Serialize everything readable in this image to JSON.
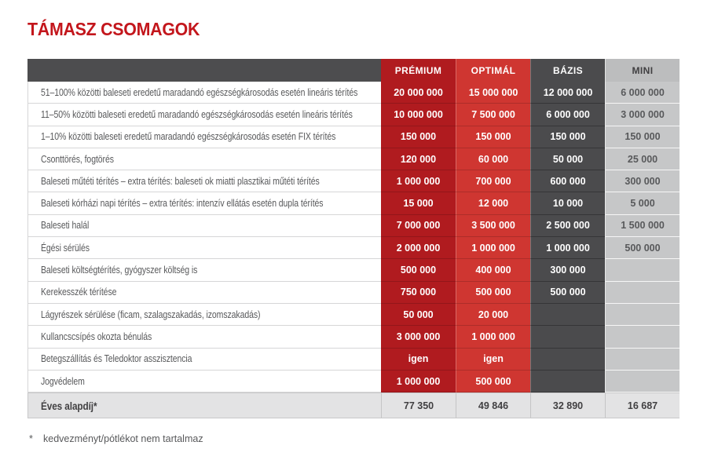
{
  "title": "TÁMASZ CSOMAGOK",
  "footnote": {
    "symbol": "*",
    "text": "kedvezményt/pótlékot nem tartalmaz"
  },
  "colors": {
    "title_red": "#c3161c",
    "premium_column": "#b01b1f",
    "optimal_column": "#cf3631",
    "bazis_column": "#4b4b4d",
    "mini_column": "#c6c7c8",
    "mini_header": "#bcbdbe",
    "label_header_gray": "#4d4d4f",
    "summary_row_bg": "#e3e3e4",
    "label_text": "#58595b"
  },
  "table": {
    "columns": [
      {
        "key": "premium",
        "label": "PRÉMIUM"
      },
      {
        "key": "optimal",
        "label": "OPTIMÁL"
      },
      {
        "key": "bazis",
        "label": "BÁZIS"
      },
      {
        "key": "mini",
        "label": "MINI"
      }
    ],
    "rows": [
      {
        "label": "51–100% közötti baleseti eredetű maradandó egészségkárosodás esetén lineáris térítés",
        "values": [
          "20 000 000",
          "15 000 000",
          "12 000 000",
          "6 000 000"
        ]
      },
      {
        "label": "11–50% közötti baleseti eredetű maradandó egészségkárosodás esetén lineáris térítés",
        "values": [
          "10 000 000",
          "7 500 000",
          "6 000 000",
          "3 000 000"
        ]
      },
      {
        "label": "1–10% közötti baleseti eredetű maradandó egészségkárosodás esetén FIX térítés",
        "values": [
          "150 000",
          "150 000",
          "150 000",
          "150 000"
        ]
      },
      {
        "label": "Csonttörés, fogtörés",
        "values": [
          "120 000",
          "60 000",
          "50 000",
          "25 000"
        ]
      },
      {
        "label": "Baleseti műtéti térítés – extra térítés: baleseti ok miatti plasztikai műtéti térítés",
        "values": [
          "1 000 000",
          "700 000",
          "600 000",
          "300 000"
        ]
      },
      {
        "label": "Baleseti kórházi napi térítés – extra térítés: intenzív ellátás esetén dupla térítés",
        "values": [
          "15 000",
          "12 000",
          "10 000",
          "5 000"
        ]
      },
      {
        "label": "Baleseti halál",
        "values": [
          "7 000 000",
          "3 500 000",
          "2 500 000",
          "1 500 000"
        ]
      },
      {
        "label": "Égési sérülés",
        "values": [
          "2 000 000",
          "1 000 000",
          "1 000 000",
          "500 000"
        ]
      },
      {
        "label": "Baleseti költségtérítés, gyógyszer költség is",
        "values": [
          "500 000",
          "400 000",
          "300 000",
          ""
        ]
      },
      {
        "label": "Kerekesszék térítése",
        "values": [
          "750 000",
          "500 000",
          "500 000",
          ""
        ]
      },
      {
        "label": "Lágyrészek sérülése (ficam, szalagszakadás, izomszakadás)",
        "values": [
          "50 000",
          "20 000",
          "",
          ""
        ]
      },
      {
        "label": "Kullancscsípés okozta bénulás",
        "values": [
          "3 000 000",
          "1 000 000",
          "",
          ""
        ]
      },
      {
        "label": "Betegszállítás és Teledoktor asszisztencia",
        "values": [
          "igen",
          "igen",
          "",
          ""
        ]
      },
      {
        "label": "Jogvédelem",
        "values": [
          "1 000 000",
          "500 000",
          "",
          ""
        ]
      }
    ],
    "summary": {
      "label": "Éves alapdíj*",
      "values": [
        "77 350",
        "49 846",
        "32 890",
        "16 687"
      ]
    }
  }
}
